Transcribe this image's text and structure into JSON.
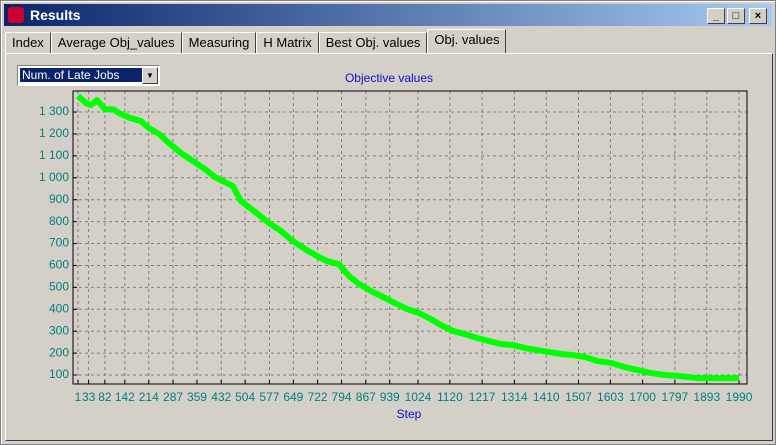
{
  "window": {
    "title": "Results"
  },
  "tabs": [
    "Index",
    "Average Obj_values",
    "Measuring",
    "H Matrix",
    "Best Obj. values",
    "Obj. values"
  ],
  "dropdown": {
    "selected": "Num. of Late Jobs"
  },
  "chart_data": {
    "type": "line",
    "title": "Objective values",
    "x_label": "Step",
    "color": "#00ff00",
    "grid": true,
    "x": [
      1,
      25,
      40,
      58,
      82,
      106,
      130,
      160,
      190,
      214,
      245,
      275,
      311,
      347,
      383,
      413,
      437,
      467,
      491,
      515,
      546,
      576,
      612,
      648,
      684,
      720,
      750,
      786,
      816,
      847,
      883,
      919,
      955,
      991,
      1027,
      1063,
      1093,
      1129,
      1165,
      1202,
      1238,
      1274,
      1310,
      1346,
      1382,
      1418,
      1454,
      1490,
      1527,
      1563,
      1605,
      1647,
      1683,
      1725,
      1767,
      1815,
      1864,
      1912,
      1960,
      1990
    ],
    "values": [
      1373,
      1341,
      1332,
      1355,
      1313,
      1313,
      1291,
      1272,
      1259,
      1227,
      1200,
      1158,
      1113,
      1076,
      1040,
      1003,
      985,
      962,
      894,
      866,
      830,
      793,
      757,
      711,
      675,
      643,
      620,
      606,
      552,
      515,
      483,
      456,
      428,
      401,
      383,
      355,
      328,
      301,
      287,
      269,
      255,
      241,
      237,
      223,
      214,
      205,
      196,
      191,
      182,
      164,
      155,
      136,
      123,
      109,
      100,
      95,
      86,
      86,
      86,
      86
    ],
    "xlim": [
      -14,
      2014
    ],
    "ylim": [
      59,
      1396
    ],
    "xticks": [
      1,
      33,
      82,
      142,
      214,
      287,
      359,
      432,
      504,
      577,
      649,
      722,
      794,
      867,
      939,
      1024,
      1120,
      1217,
      1314,
      1410,
      1507,
      1603,
      1700,
      1797,
      1893,
      1990
    ],
    "yticks": [
      100,
      200,
      300,
      400,
      500,
      600,
      700,
      800,
      900,
      {
        "value": 1000,
        "label": "1 000"
      },
      {
        "value": 1100,
        "label": "1 100"
      },
      {
        "value": 1200,
        "label": "1 200"
      },
      {
        "value": 1300,
        "label": "1 300"
      }
    ]
  }
}
